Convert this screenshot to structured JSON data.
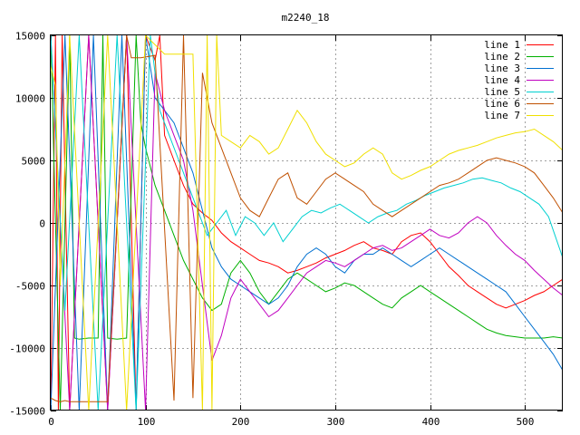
{
  "chart_data": {
    "type": "line",
    "title": "m2240_18",
    "xlabel": "",
    "ylabel": "",
    "xlim": [
      0,
      540
    ],
    "ylim": [
      -15000,
      15000
    ],
    "xticks": [
      0,
      100,
      200,
      300,
      400,
      500
    ],
    "yticks": [
      -15000,
      -10000,
      -5000,
      0,
      5000,
      10000,
      15000
    ],
    "xtick_labels": [
      "0",
      "100",
      "200",
      "300",
      "400",
      "500"
    ],
    "ytick_labels": [
      "-15000",
      "-10000",
      "-5000",
      "0",
      "5000",
      "10000",
      "15000"
    ],
    "grid": true,
    "legend_position": "top-right",
    "series": [
      {
        "name": "line 1",
        "color": "#ff0000",
        "x": [
          0,
          5,
          8,
          12,
          20,
          40,
          60,
          80,
          90,
          100,
          110,
          115,
          120,
          130,
          140,
          150,
          160,
          170,
          180,
          190,
          200,
          210,
          220,
          230,
          240,
          250,
          260,
          270,
          280,
          290,
          300,
          310,
          320,
          330,
          340,
          350,
          360,
          370,
          380,
          390,
          400,
          410,
          420,
          430,
          440,
          450,
          460,
          470,
          480,
          490,
          500,
          510,
          520,
          530,
          540
        ],
        "y": [
          -15000,
          15000,
          -15000,
          15000,
          -15000,
          15000,
          -15000,
          15000,
          -15000,
          15000,
          13000,
          15000,
          7000,
          5000,
          3000,
          1500,
          800,
          200,
          -800,
          -1500,
          -2000,
          -2500,
          -3000,
          -3200,
          -3500,
          -4000,
          -3800,
          -3500,
          -3200,
          -2800,
          -2500,
          -2200,
          -1800,
          -1500,
          -2000,
          -2200,
          -2500,
          -1500,
          -1000,
          -800,
          -1500,
          -2500,
          -3500,
          -4200,
          -5000,
          -5500,
          -6000,
          -6500,
          -6800,
          -6500,
          -6200,
          -5800,
          -5500,
          -5000,
          -4500
        ]
      },
      {
        "name": "line 2",
        "color": "#00b000",
        "x": [
          0,
          10,
          20,
          25,
          30,
          40,
          50,
          55,
          60,
          70,
          80,
          90,
          95,
          100,
          110,
          120,
          130,
          140,
          150,
          160,
          170,
          180,
          190,
          200,
          210,
          220,
          230,
          240,
          250,
          260,
          270,
          280,
          290,
          300,
          310,
          320,
          330,
          340,
          350,
          360,
          370,
          380,
          390,
          400,
          410,
          420,
          430,
          440,
          450,
          460,
          470,
          480,
          490,
          500,
          510,
          520,
          530,
          540
        ],
        "y": [
          15000,
          -15000,
          15000,
          -9200,
          -9300,
          -9200,
          -9200,
          15000,
          -9200,
          -9300,
          -9200,
          15000,
          8000,
          6000,
          3000,
          1000,
          -1000,
          -3000,
          -4500,
          -6000,
          -7000,
          -6500,
          -4000,
          -3000,
          -4000,
          -5500,
          -6500,
          -5500,
          -4500,
          -4000,
          -4500,
          -5000,
          -5500,
          -5200,
          -4800,
          -5000,
          -5500,
          -6000,
          -6500,
          -6800,
          -6000,
          -5500,
          -5000,
          -5500,
          -6000,
          -6500,
          -7000,
          -7500,
          -8000,
          -8500,
          -8800,
          -9000,
          -9100,
          -9200,
          -9200,
          -9200,
          -9100,
          -9200
        ]
      },
      {
        "name": "line 3",
        "color": "#0070d0",
        "x": [
          0,
          15,
          30,
          45,
          60,
          75,
          90,
          100,
          110,
          120,
          130,
          140,
          150,
          160,
          170,
          180,
          190,
          200,
          210,
          220,
          230,
          240,
          250,
          260,
          270,
          280,
          290,
          300,
          310,
          320,
          330,
          340,
          350,
          360,
          370,
          380,
          390,
          400,
          410,
          420,
          430,
          440,
          450,
          460,
          470,
          480,
          490,
          500,
          510,
          520,
          530,
          540
        ],
        "y": [
          -15000,
          15000,
          -15000,
          15000,
          -15000,
          15000,
          -15000,
          15000,
          10000,
          9000,
          8000,
          6000,
          4000,
          1000,
          -2000,
          -3500,
          -4500,
          -5000,
          -5500,
          -6000,
          -6500,
          -6000,
          -5000,
          -3500,
          -2500,
          -2000,
          -2500,
          -3500,
          -4000,
          -3000,
          -2500,
          -2500,
          -2000,
          -2500,
          -3000,
          -3500,
          -3000,
          -2500,
          -2000,
          -2500,
          -3000,
          -3500,
          -4000,
          -4500,
          -5000,
          -5500,
          -6500,
          -7500,
          -8500,
          -9500,
          -10500,
          -11800
        ]
      },
      {
        "name": "line 4",
        "color": "#c000c0",
        "x": [
          0,
          20,
          40,
          60,
          80,
          100,
          110,
          120,
          130,
          140,
          150,
          160,
          170,
          180,
          190,
          200,
          210,
          220,
          230,
          240,
          250,
          260,
          270,
          280,
          290,
          300,
          310,
          320,
          330,
          340,
          350,
          360,
          370,
          380,
          390,
          400,
          410,
          420,
          430,
          440,
          450,
          460,
          470,
          480,
          490,
          500,
          510,
          520,
          530,
          540
        ],
        "y": [
          15000,
          -15000,
          15000,
          -15000,
          15000,
          -15000,
          12000,
          9000,
          7000,
          5000,
          1000,
          -5000,
          -11000,
          -9000,
          -6000,
          -4500,
          -5500,
          -6500,
          -7500,
          -7000,
          -6000,
          -5000,
          -4000,
          -3500,
          -3000,
          -3200,
          -3500,
          -3000,
          -2500,
          -2000,
          -1800,
          -2200,
          -2000,
          -1500,
          -1000,
          -500,
          -1000,
          -1200,
          -800,
          0,
          500,
          0,
          -1000,
          -1800,
          -2500,
          -3000,
          -3800,
          -4500,
          -5200,
          -5800
        ]
      },
      {
        "name": "line 5",
        "color": "#00d0d0",
        "x": [
          0,
          15,
          30,
          50,
          70,
          90,
          105,
          115,
          125,
          135,
          145,
          155,
          165,
          175,
          185,
          195,
          205,
          215,
          225,
          235,
          245,
          255,
          265,
          275,
          285,
          295,
          305,
          315,
          325,
          335,
          345,
          355,
          365,
          375,
          385,
          395,
          405,
          415,
          425,
          435,
          445,
          455,
          465,
          475,
          485,
          495,
          505,
          515,
          525,
          540
        ],
        "y": [
          15000,
          -7000,
          15000,
          -15000,
          15000,
          -15000,
          15000,
          9000,
          7000,
          5000,
          3000,
          1000,
          -1000,
          0,
          1000,
          -1000,
          500,
          0,
          -1000,
          0,
          -1500,
          -500,
          500,
          1000,
          800,
          1200,
          1500,
          1000,
          500,
          0,
          500,
          800,
          1000,
          1500,
          1800,
          2200,
          2500,
          2800,
          3000,
          3200,
          3500,
          3600,
          3400,
          3200,
          2800,
          2500,
          2000,
          1500,
          500,
          -2800
        ]
      },
      {
        "name": "line 6",
        "color": "#c05000",
        "x": [
          0,
          5,
          10,
          15,
          20,
          40,
          60,
          80,
          85,
          95,
          110,
          130,
          140,
          150,
          160,
          170,
          180,
          190,
          200,
          210,
          220,
          230,
          240,
          250,
          260,
          270,
          280,
          290,
          300,
          310,
          320,
          330,
          340,
          350,
          360,
          370,
          380,
          390,
          400,
          410,
          420,
          430,
          440,
          450,
          460,
          470,
          480,
          490,
          500,
          510,
          520,
          530,
          540
        ],
        "y": [
          -14000,
          -14200,
          -14300,
          -14200,
          -14300,
          -14300,
          -14300,
          15000,
          13200,
          13200,
          13400,
          -14200,
          15000,
          -14000,
          12000,
          8000,
          6000,
          4000,
          2000,
          1000,
          500,
          2000,
          3500,
          4000,
          2000,
          1500,
          2500,
          3500,
          4000,
          3500,
          3000,
          2500,
          1500,
          1000,
          500,
          1000,
          1500,
          2000,
          2500,
          3000,
          3200,
          3500,
          4000,
          4500,
          5000,
          5200,
          5000,
          4800,
          4500,
          4000,
          3000,
          2000,
          800
        ]
      },
      {
        "name": "line 7",
        "color": "#f0e000",
        "x": [
          0,
          5,
          10,
          20,
          40,
          60,
          80,
          100,
          120,
          150,
          160,
          165,
          170,
          175,
          180,
          190,
          200,
          210,
          220,
          230,
          240,
          250,
          260,
          270,
          280,
          290,
          300,
          310,
          320,
          330,
          340,
          350,
          360,
          370,
          380,
          390,
          400,
          410,
          420,
          430,
          440,
          450,
          460,
          470,
          480,
          490,
          500,
          510,
          520,
          530,
          540
        ],
        "y": [
          12500,
          11000,
          -5000,
          15000,
          -15000,
          15000,
          -15000,
          15000,
          13500,
          13500,
          -15000,
          15000,
          -15000,
          15000,
          7000,
          6500,
          6000,
          7000,
          6500,
          5500,
          6000,
          7500,
          9000,
          8000,
          6500,
          5500,
          5000,
          4500,
          4800,
          5500,
          6000,
          5500,
          4000,
          3500,
          3800,
          4200,
          4500,
          5000,
          5500,
          5800,
          6000,
          6200,
          6500,
          6800,
          7000,
          7200,
          7300,
          7500,
          7000,
          6500,
          5800
        ]
      }
    ]
  }
}
